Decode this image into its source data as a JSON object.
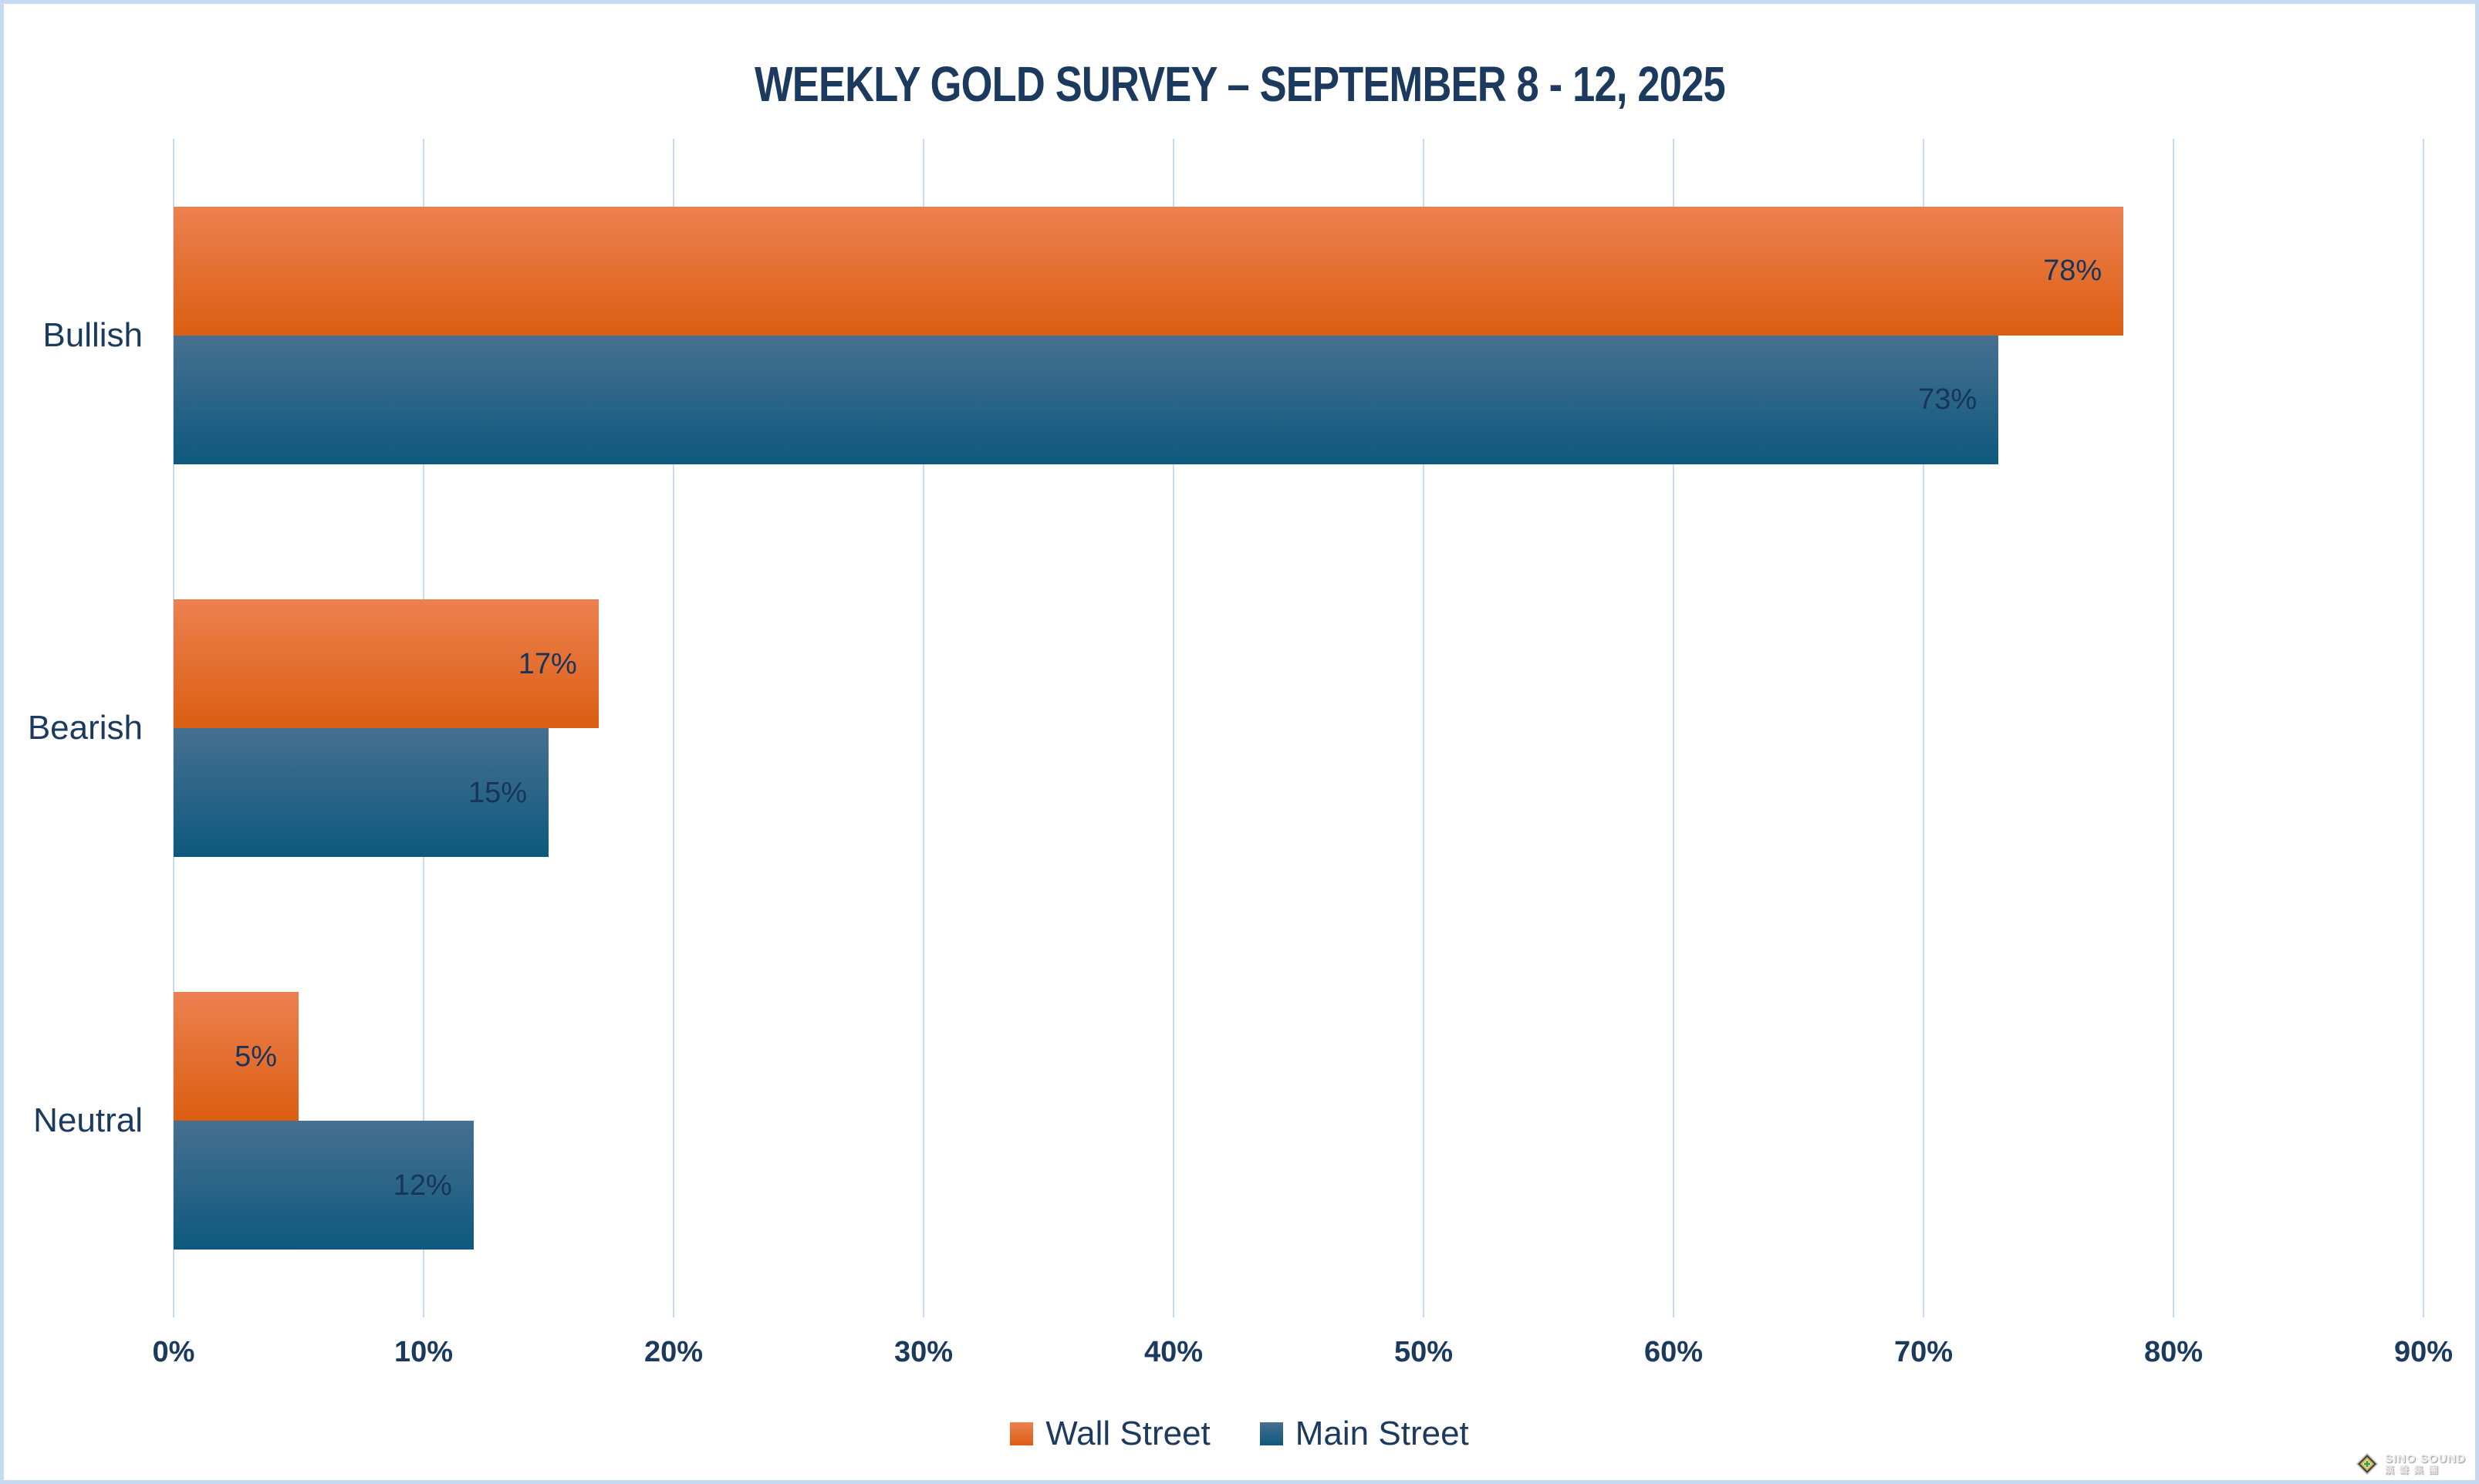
{
  "title": "WEEKLY GOLD SURVEY – SEPTEMBER 8 - 12, 2025",
  "chart_data": {
    "type": "bar",
    "orientation": "horizontal",
    "title": "WEEKLY GOLD SURVEY – SEPTEMBER 8 - 12, 2025",
    "categories": [
      "Bullish",
      "Bearish",
      "Neutral"
    ],
    "series": [
      {
        "name": "Wall Street",
        "values": [
          78,
          17,
          5
        ],
        "labels": [
          "78%",
          "17%",
          "5%"
        ],
        "color_top": "#EC8150",
        "color_bottom": "#DB5E12"
      },
      {
        "name": "Main Street",
        "values": [
          73,
          15,
          12
        ],
        "labels": [
          "73%",
          "15%",
          "12%"
        ],
        "color_top": "#477090",
        "color_bottom": "#0D597D"
      }
    ],
    "x_ticks": [
      "0%",
      "10%",
      "20%",
      "30%",
      "40%",
      "50%",
      "60%",
      "70%",
      "80%",
      "90%"
    ],
    "xlim": [
      0,
      90
    ],
    "xlabel": "",
    "ylabel": "",
    "grid": "vertical-only",
    "legend_position": "bottom",
    "data_label_position": "inside-end"
  },
  "colors": {
    "title_text": "#1B3A5E",
    "axis_text": "#1B3A5E",
    "category_text": "#1B3A5E",
    "data_label_text": "#17355B",
    "gridline": "#C7DBF1",
    "frame_border": "#C5D9F0",
    "background": "#FFFFFF"
  },
  "watermark": {
    "line1": "SINO SOUND",
    "line2": "漢聲集團"
  }
}
